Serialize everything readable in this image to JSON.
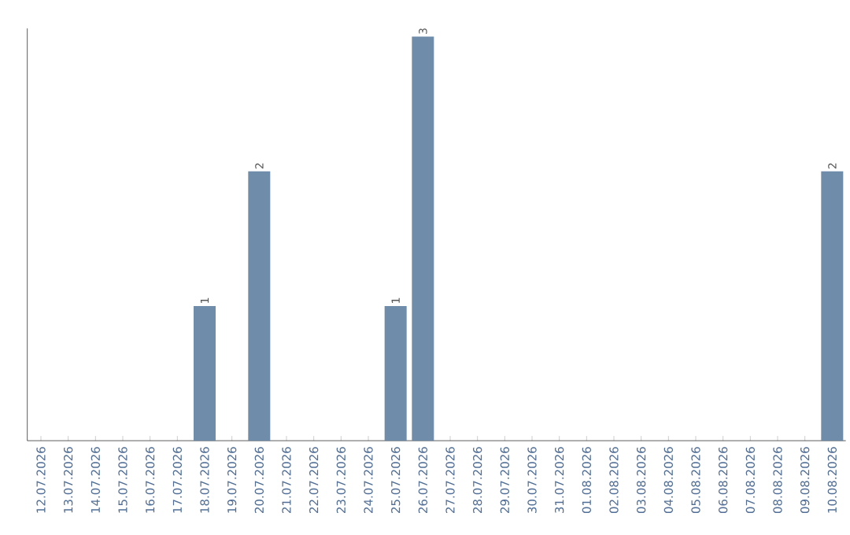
{
  "chart_data": {
    "type": "bar",
    "categories": [
      "12.07.2026",
      "13.07.2026",
      "14.07.2026",
      "15.07.2026",
      "16.07.2026",
      "17.07.2026",
      "18.07.2026",
      "19.07.2026",
      "20.07.2026",
      "21.07.2026",
      "22.07.2026",
      "23.07.2026",
      "24.07.2026",
      "25.07.2026",
      "26.07.2026",
      "27.07.2026",
      "28.07.2026",
      "29.07.2026",
      "30.07.2026",
      "31.07.2026",
      "01.08.2026",
      "02.08.2026",
      "03.08.2026",
      "04.08.2026",
      "05.08.2026",
      "06.08.2026",
      "07.08.2026",
      "08.08.2026",
      "09.08.2026",
      "10.08.2026"
    ],
    "values": [
      null,
      null,
      null,
      null,
      null,
      null,
      1,
      null,
      2,
      null,
      null,
      null,
      null,
      1,
      3,
      null,
      null,
      null,
      null,
      null,
      null,
      null,
      null,
      null,
      null,
      null,
      null,
      null,
      null,
      2
    ],
    "color": "#6f8dab",
    "data_labels": true
  }
}
